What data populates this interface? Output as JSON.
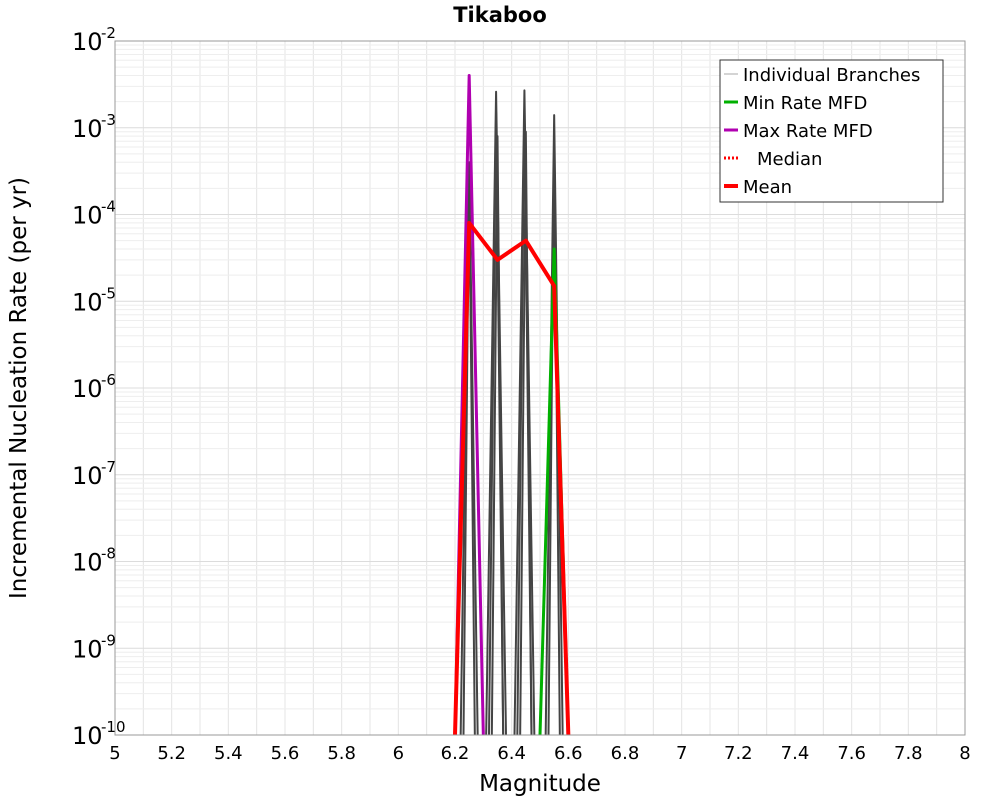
{
  "chart_data": {
    "type": "line",
    "title": "Tikaboo",
    "xlabel": "Magnitude",
    "ylabel": "Incremental Nucleation Rate (per yr)",
    "xlim": [
      5,
      8
    ],
    "ylim": [
      1e-10,
      0.01
    ],
    "yscale": "log",
    "grid": true,
    "legend_position": "top-right",
    "x_ticks": [
      "5",
      "5.2",
      "5.4",
      "5.6",
      "5.8",
      "6",
      "6.2",
      "6.4",
      "6.6",
      "6.8",
      "7",
      "7.2",
      "7.4",
      "7.6",
      "7.8",
      "8"
    ],
    "y_ticks": [
      {
        "base": "10",
        "exp": "-10"
      },
      {
        "base": "10",
        "exp": "-9"
      },
      {
        "base": "10",
        "exp": "-8"
      },
      {
        "base": "10",
        "exp": "-7"
      },
      {
        "base": "10",
        "exp": "-6"
      },
      {
        "base": "10",
        "exp": "-5"
      },
      {
        "base": "10",
        "exp": "-4"
      },
      {
        "base": "10",
        "exp": "-3"
      },
      {
        "base": "10",
        "exp": "-2"
      }
    ],
    "series": [
      {
        "name": "Individual Branches",
        "color": "#444444",
        "style": "thin",
        "branches": [
          {
            "x": [
              6.22,
              6.25,
              6.28
            ],
            "y": [
              1e-10,
              0.0004,
              1e-10
            ]
          },
          {
            "x": [
              6.23,
              6.25,
              6.27
            ],
            "y": [
              1e-10,
              0.0003,
              1e-10
            ]
          },
          {
            "x": [
              6.31,
              6.345,
              6.38
            ],
            "y": [
              1e-10,
              0.0026,
              1e-10
            ]
          },
          {
            "x": [
              6.32,
              6.345,
              6.37
            ],
            "y": [
              1e-10,
              0.0015,
              1e-10
            ]
          },
          {
            "x": [
              6.33,
              6.35,
              6.37
            ],
            "y": [
              1e-10,
              0.0008,
              1e-10
            ]
          },
          {
            "x": [
              6.41,
              6.445,
              6.48
            ],
            "y": [
              1e-10,
              0.0027,
              1e-10
            ]
          },
          {
            "x": [
              6.42,
              6.445,
              6.47
            ],
            "y": [
              1e-10,
              0.0016,
              1e-10
            ]
          },
          {
            "x": [
              6.43,
              6.45,
              6.47
            ],
            "y": [
              1e-10,
              0.0009,
              1e-10
            ]
          },
          {
            "x": [
              6.52,
              6.55,
              6.58
            ],
            "y": [
              1e-10,
              0.0014,
              1e-10
            ]
          },
          {
            "x": [
              6.53,
              6.55,
              6.57
            ],
            "y": [
              1e-10,
              0.0007,
              1e-10
            ]
          }
        ]
      },
      {
        "name": "Min Rate MFD",
        "color": "#00b000",
        "x": [
          6.5,
          6.55,
          6.6
        ],
        "y": [
          1e-10,
          4e-05,
          1e-10
        ]
      },
      {
        "name": "Max Rate MFD",
        "color": "#b000b0",
        "x": [
          6.2,
          6.25,
          6.3
        ],
        "y": [
          1e-10,
          0.004,
          1e-10
        ]
      },
      {
        "name": "Median",
        "color": "#ff0000",
        "style": "dotted",
        "x": [],
        "y": []
      },
      {
        "name": "Mean",
        "color": "#ff0000",
        "x": [
          6.2,
          6.25,
          6.35,
          6.45,
          6.55,
          6.6
        ],
        "y": [
          1e-10,
          8e-05,
          3e-05,
          5e-05,
          1.5e-05,
          1e-10
        ]
      }
    ]
  }
}
